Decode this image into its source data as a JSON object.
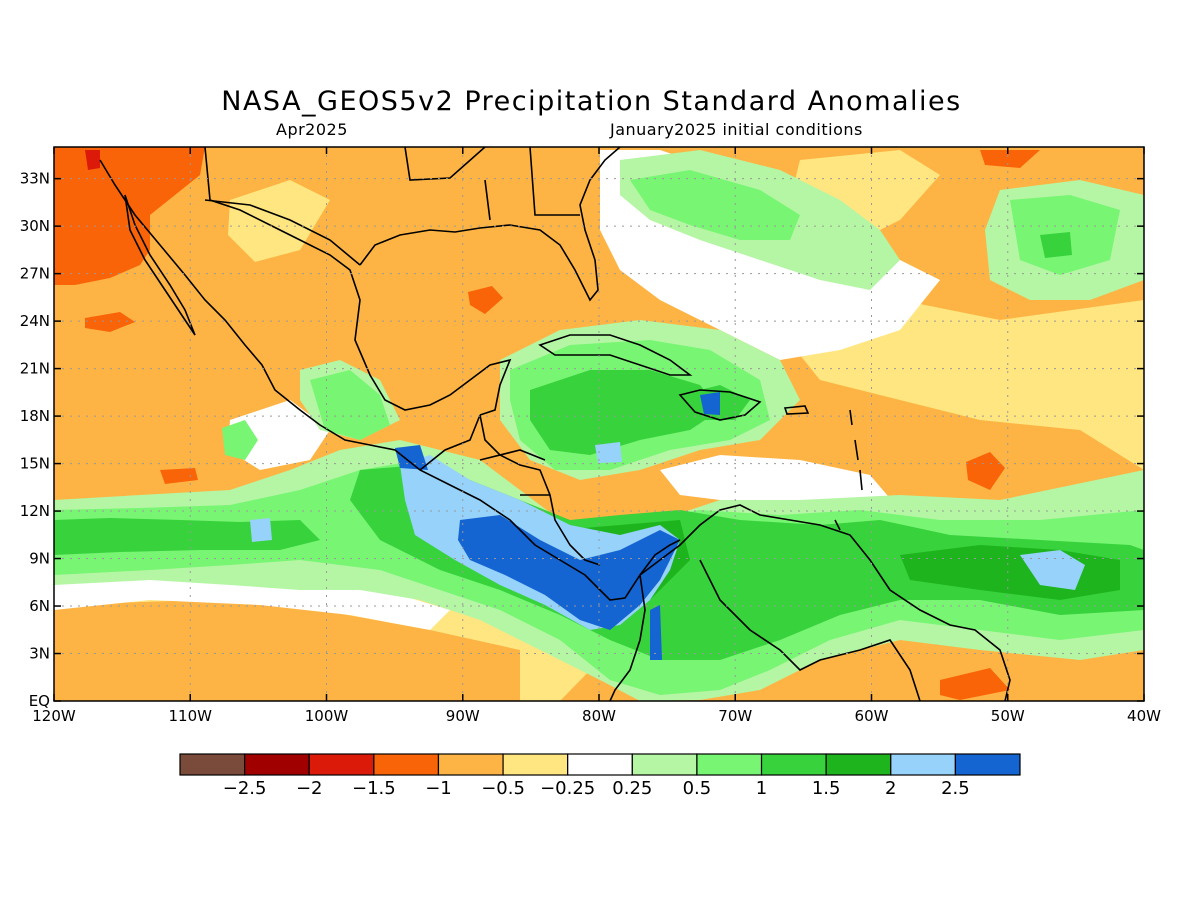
{
  "title": "NASA_GEOS5v2 Precipitation Standard Anomalies",
  "subtitle_left": "Apr2025",
  "subtitle_right": "January2025 initial conditions",
  "map": {
    "lon_range": [
      -120,
      -40
    ],
    "lat_range": [
      0,
      35
    ],
    "lat_ticks": [
      {
        "lat": 33,
        "label": "33N"
      },
      {
        "lat": 30,
        "label": "30N"
      },
      {
        "lat": 27,
        "label": "27N"
      },
      {
        "lat": 24,
        "label": "24N"
      },
      {
        "lat": 21,
        "label": "21N"
      },
      {
        "lat": 18,
        "label": "18N"
      },
      {
        "lat": 15,
        "label": "15N"
      },
      {
        "lat": 12,
        "label": "12N"
      },
      {
        "lat": 9,
        "label": "9N"
      },
      {
        "lat": 6,
        "label": "6N"
      },
      {
        "lat": 3,
        "label": "3N"
      },
      {
        "lat": 0,
        "label": "EQ"
      }
    ],
    "lon_ticks": [
      {
        "lon": -120,
        "label": "120W"
      },
      {
        "lon": -110,
        "label": "110W"
      },
      {
        "lon": -100,
        "label": "100W"
      },
      {
        "lon": -90,
        "label": "90W"
      },
      {
        "lon": -80,
        "label": "80W"
      },
      {
        "lon": -70,
        "label": "70W"
      },
      {
        "lon": -60,
        "label": "60W"
      },
      {
        "lon": -50,
        "label": "50W"
      },
      {
        "lon": -40,
        "label": "40W"
      }
    ],
    "grid": true
  },
  "colorbar": {
    "colors": [
      "#7a4b3a",
      "#a00000",
      "#dc1a0a",
      "#fa6408",
      "#fdb444",
      "#ffe680",
      "#ffffff",
      "#b4f6a4",
      "#78f573",
      "#37d23c",
      "#1eb41e",
      "#96d2fa",
      "#1464d2"
    ],
    "labels": [
      "−2.5",
      "−2",
      "−1.5",
      "−1",
      "−0.5",
      "−0.25",
      "0.25",
      "0.5",
      "1",
      "1.5",
      "2",
      "2.5"
    ]
  },
  "colors": {
    "strong_dry": "#fa6408",
    "dry": "#fdb444",
    "slight_dry": "#ffe680",
    "slight_wet": "#b4f6a4",
    "wet": "#78f573",
    "wetter": "#37d23c",
    "very_wet": "#1eb41e",
    "extreme_wet_light": "#96d2fa",
    "extreme_wet": "#1464d2"
  }
}
